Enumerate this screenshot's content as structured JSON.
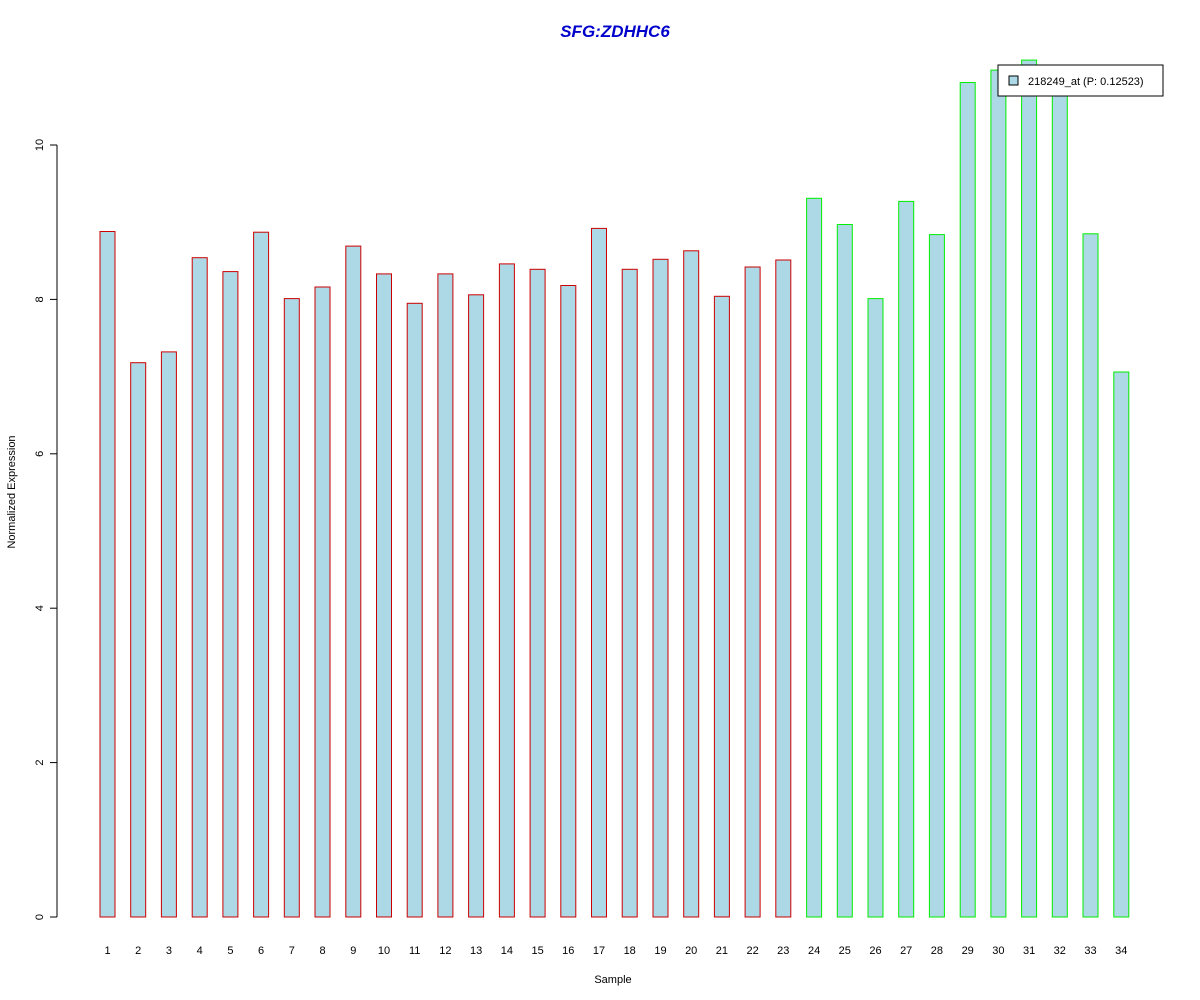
{
  "chart_data": {
    "type": "bar",
    "title": "SFG:ZDHHC6",
    "xlabel": "Sample",
    "ylabel": "Normalized Expression",
    "categories": [
      "1",
      "2",
      "3",
      "4",
      "5",
      "6",
      "7",
      "8",
      "9",
      "10",
      "11",
      "12",
      "13",
      "14",
      "15",
      "16",
      "17",
      "18",
      "19",
      "20",
      "21",
      "22",
      "23",
      "24",
      "25",
      "26",
      "27",
      "28",
      "29",
      "30",
      "31",
      "32",
      "33",
      "34"
    ],
    "series": [
      {
        "name": "218249_at (P: 0.12523)",
        "values": [
          8.88,
          7.18,
          7.32,
          8.54,
          8.36,
          8.87,
          8.01,
          8.16,
          8.69,
          8.33,
          7.95,
          8.33,
          8.06,
          8.46,
          8.39,
          8.18,
          8.92,
          8.39,
          8.52,
          8.63,
          8.04,
          8.42,
          8.51,
          9.31,
          8.97,
          8.01,
          9.27,
          8.84,
          10.81,
          10.97,
          11.1,
          10.75,
          8.85,
          7.06
        ]
      }
    ],
    "group_split_after": 23,
    "ylim": [
      0,
      11.1
    ],
    "yticks": [
      "0",
      "2",
      "4",
      "6",
      "8",
      "10"
    ],
    "legend": {
      "position": "top-right",
      "entries": [
        "218249_at (P: 0.12523)"
      ]
    },
    "grid": false,
    "colors": {
      "title": "#0000CC",
      "bar_fill": "#ADD8E6",
      "group1_border": "#CC0000",
      "group2_border": "#00EE00",
      "axis": "#000000"
    }
  }
}
